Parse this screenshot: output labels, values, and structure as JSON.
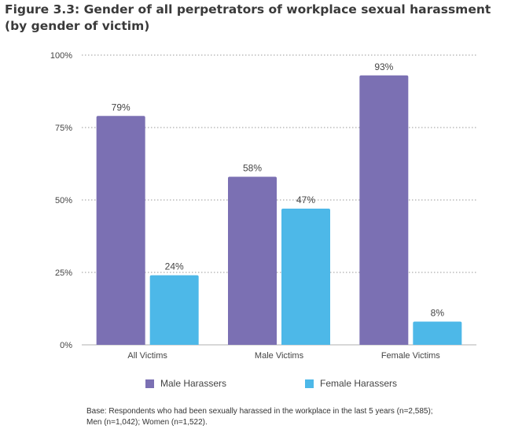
{
  "title": "Figure 3.3: Gender of all perpetrators of workplace sexual harassment (by gender of victim)",
  "footnote": {
    "line1": "Base: Respondents who had been sexually harassed in the workplace in the last 5 years (n=2,585);",
    "line2": "Men (n=1,042); Women (n=1,522)."
  },
  "chart_data": {
    "type": "bar",
    "categories": [
      "All Victims",
      "Male Victims",
      "Female Victims"
    ],
    "series": [
      {
        "name": "Male Harassers",
        "color": "#7b70b3",
        "values": [
          79,
          58,
          93
        ],
        "labels": [
          "79%",
          "58%",
          "93%"
        ]
      },
      {
        "name": "Female Harassers",
        "color": "#4db8e8",
        "values": [
          24,
          47,
          8
        ],
        "labels": [
          "24%",
          "47%",
          "8%"
        ]
      }
    ],
    "ylim": [
      0,
      100
    ],
    "yticks": [
      0,
      25,
      50,
      75,
      100
    ],
    "ytick_labels": [
      "0%",
      "25%",
      "50%",
      "75%",
      "100%"
    ],
    "grid": true,
    "legend": "bottom"
  }
}
